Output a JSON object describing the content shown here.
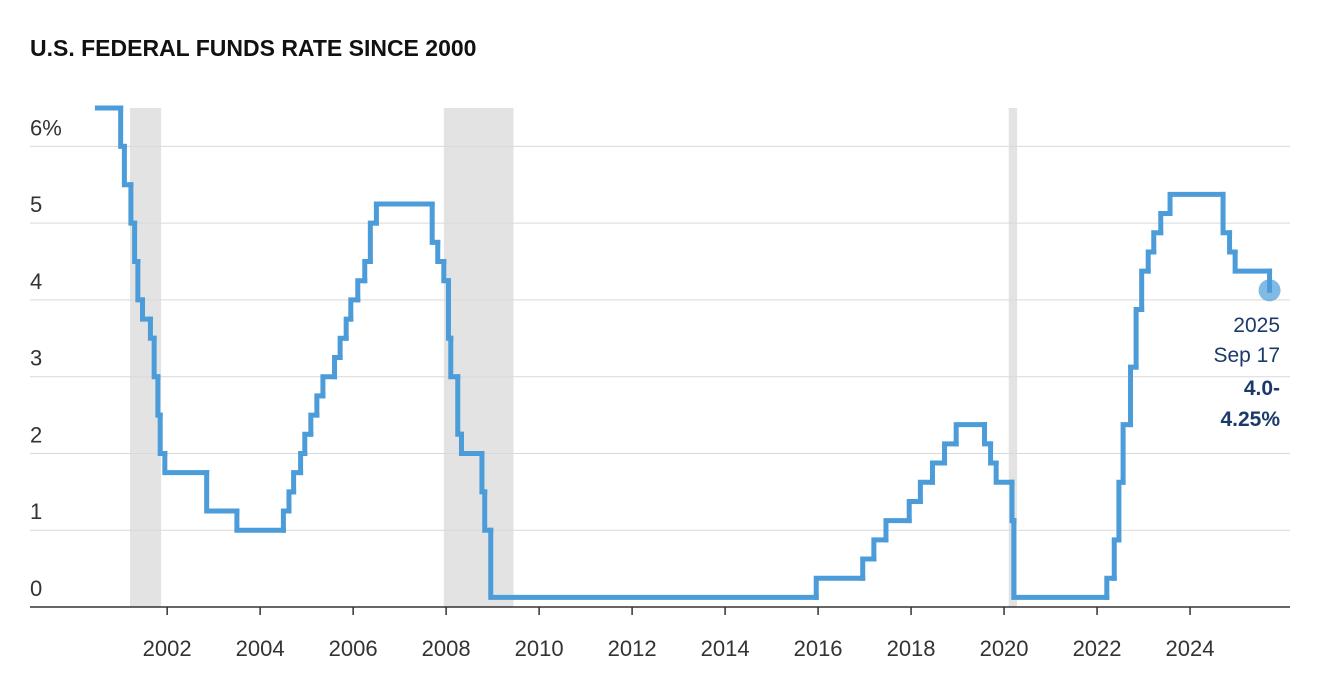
{
  "chart_data": {
    "type": "step",
    "title": "U.S. FEDERAL FUNDS RATE SINCE 2000",
    "xlim": [
      1999.05,
      2026.15
    ],
    "xticks": [
      2002,
      2004,
      2006,
      2008,
      2010,
      2012,
      2014,
      2016,
      2018,
      2020,
      2022,
      2024
    ],
    "ylim": [
      0,
      6.5
    ],
    "yticks": [
      0,
      1,
      2,
      3,
      4,
      5,
      {
        "value": 6,
        "label": "6%"
      }
    ],
    "grid": true,
    "shaded_periods": [
      [
        2001.2,
        2001.87
      ],
      [
        2007.95,
        2009.45
      ],
      [
        2020.1,
        2020.28
      ]
    ],
    "shade_color": "#e3e3e3",
    "series": [
      {
        "color": "#4b9cd9",
        "x": [
          2000.5,
          2001.0,
          2001.08,
          2001.22,
          2001.3,
          2001.37,
          2001.47,
          2001.64,
          2001.72,
          2001.8,
          2001.85,
          2001.95,
          2002.85,
          2003.5,
          2004.5,
          2004.62,
          2004.72,
          2004.87,
          2004.96,
          2005.09,
          2005.22,
          2005.35,
          2005.6,
          2005.72,
          2005.85,
          2005.95,
          2006.1,
          2006.25,
          2006.37,
          2006.5,
          2007.7,
          2007.82,
          2007.95,
          2008.05,
          2008.1,
          2008.25,
          2008.33,
          2008.77,
          2008.83,
          2008.96,
          2015.96,
          2016.96,
          2017.2,
          2017.46,
          2017.96,
          2018.2,
          2018.46,
          2018.72,
          2018.97,
          2019.58,
          2019.71,
          2019.83,
          2020.17,
          2020.21,
          2022.21,
          2022.37,
          2022.47,
          2022.56,
          2022.72,
          2022.84,
          2022.96,
          2023.1,
          2023.22,
          2023.37,
          2023.57,
          2024.71,
          2024.85,
          2024.97,
          2025.71
        ],
        "values": [
          6.5,
          6.0,
          5.5,
          5.0,
          4.5,
          4.0,
          3.75,
          3.5,
          3.0,
          2.5,
          2.0,
          1.75,
          1.25,
          1.0,
          1.25,
          1.5,
          1.75,
          2.0,
          2.25,
          2.5,
          2.75,
          3.0,
          3.25,
          3.5,
          3.75,
          4.0,
          4.25,
          4.5,
          5.0,
          5.25,
          4.75,
          4.5,
          4.25,
          3.5,
          3.0,
          2.25,
          2.0,
          1.5,
          1.0,
          0.125,
          0.375,
          0.625,
          0.875,
          1.125,
          1.375,
          1.625,
          1.875,
          2.125,
          2.375,
          2.125,
          1.875,
          1.625,
          1.125,
          0.125,
          0.375,
          0.875,
          1.625,
          2.375,
          3.125,
          3.875,
          4.375,
          4.625,
          4.875,
          5.125,
          5.375,
          4.875,
          4.625,
          4.375,
          4.125
        ]
      }
    ],
    "annotation": {
      "lines": [
        "2025",
        "Sep 17",
        "4.0-",
        "4.25%"
      ],
      "color": "#1b3a6b"
    }
  }
}
